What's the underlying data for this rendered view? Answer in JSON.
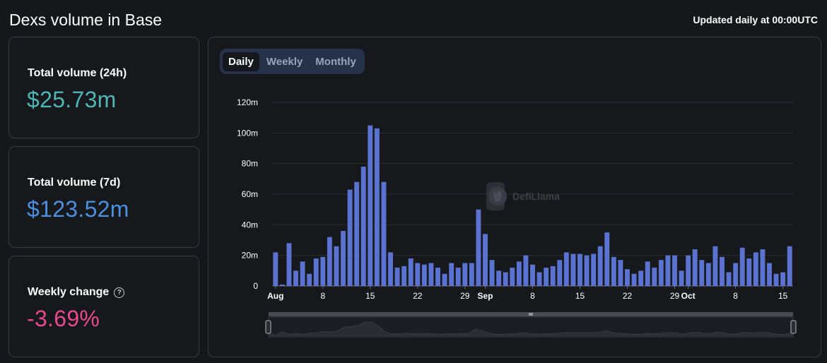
{
  "header": {
    "title": "Dexs volume in Base",
    "updated": "Updated daily at 00:00UTC"
  },
  "cards": {
    "total_24h": {
      "label": "Total volume (24h)",
      "value": "$25.73m"
    },
    "total_7d": {
      "label": "Total volume (7d)",
      "value": "$123.52m"
    },
    "weekly_change": {
      "label": "Weekly change",
      "value": "-3.69%"
    }
  },
  "colors": {
    "value_24h": "#4fb5b5",
    "value_7d": "#4a8fe0",
    "value_change": "#e8498f",
    "bar": "#5a73d1"
  },
  "tabs": {
    "daily": "Daily",
    "weekly": "Weekly",
    "monthly": "Monthly",
    "active": "Daily"
  },
  "watermark": {
    "text": "DefiLlama"
  },
  "chart_data": {
    "type": "bar",
    "ylim": [
      0,
      120
    ],
    "yticks": [
      "0",
      "20m",
      "40m",
      "60m",
      "80m",
      "100m",
      "120m"
    ],
    "grid": true,
    "legend": "none",
    "xtick_labels": [
      {
        "index": 0,
        "label": "Aug"
      },
      {
        "index": 7,
        "label": "8"
      },
      {
        "index": 14,
        "label": "15"
      },
      {
        "index": 21,
        "label": "22"
      },
      {
        "index": 28,
        "label": "29"
      },
      {
        "index": 31,
        "label": "Sep"
      },
      {
        "index": 38,
        "label": "8"
      },
      {
        "index": 45,
        "label": "15"
      },
      {
        "index": 52,
        "label": "22"
      },
      {
        "index": 59,
        "label": "29"
      },
      {
        "index": 61,
        "label": "Oct"
      },
      {
        "index": 68,
        "label": "8"
      },
      {
        "index": 75,
        "label": "15"
      }
    ],
    "values": [
      22,
      1,
      28,
      10,
      16,
      8,
      18,
      19,
      32,
      26,
      36,
      63,
      68,
      78,
      105,
      103,
      68,
      22,
      12,
      13,
      18,
      15,
      14,
      15,
      12,
      8,
      15,
      12,
      15,
      15,
      50,
      34,
      17,
      10,
      9,
      12,
      16,
      20,
      14,
      9,
      12,
      13,
      17,
      22,
      21,
      21,
      20,
      21,
      26,
      35,
      19,
      17,
      11,
      8,
      10,
      16,
      12,
      17,
      20,
      20,
      10,
      20,
      24,
      17,
      15,
      26,
      19,
      9,
      15,
      25,
      18,
      22,
      24,
      15,
      8,
      9,
      26
    ]
  }
}
